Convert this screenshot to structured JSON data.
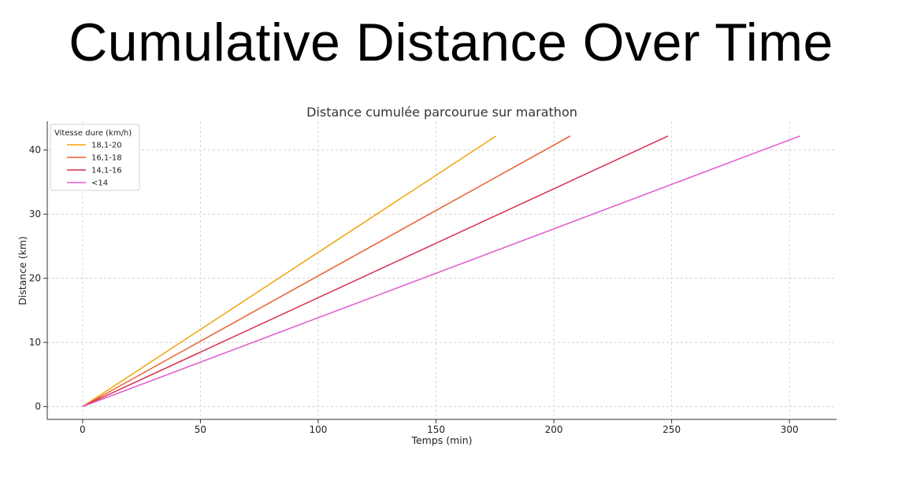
{
  "slide_title": "Cumulative Distance Over Time",
  "colors": {
    "grid": "#cccccc",
    "axis": "#333333"
  },
  "chart_data": {
    "type": "line",
    "title": "Distance cumulée parcourue sur marathon",
    "xlabel": "Temps (min)",
    "ylabel": "Distance (km)",
    "xlim": [
      -15,
      320
    ],
    "ylim": [
      -2,
      44.5
    ],
    "xticks": [
      0,
      50,
      100,
      150,
      200,
      250,
      300
    ],
    "yticks": [
      0,
      10,
      20,
      30,
      40
    ],
    "grid": true,
    "legend_title": "Vitesse dure (km/h)",
    "legend_position": "top-left",
    "series": [
      {
        "name": "18,1-20",
        "color": "#f0a30a",
        "x": [
          0,
          175.5
        ],
        "y": [
          0,
          42.195
        ]
      },
      {
        "name": "16,1-18",
        "color": "#e8612c",
        "x": [
          0,
          207
        ],
        "y": [
          0,
          42.195
        ]
      },
      {
        "name": "14,1-16",
        "color": "#d92e4b",
        "x": [
          0,
          248.5
        ],
        "y": [
          0,
          42.195
        ]
      },
      {
        "name": "<14",
        "color": "#e05ad0",
        "x": [
          0,
          304.5
        ],
        "y": [
          0,
          42.195
        ]
      }
    ]
  }
}
